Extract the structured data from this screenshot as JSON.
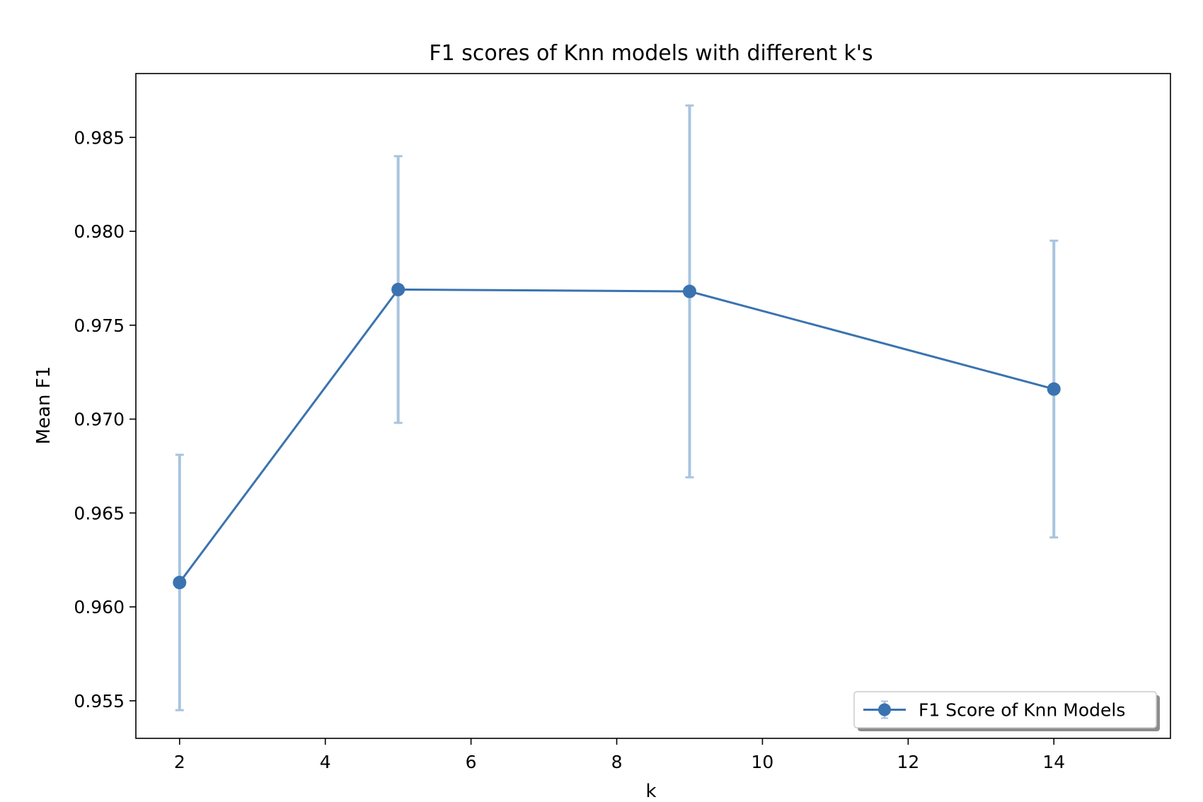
{
  "chart_data": {
    "type": "line",
    "title": "F1 scores of Knn models with different k's",
    "xlabel": "k",
    "ylabel": "Mean F1",
    "xlim": [
      1.4,
      15.6
    ],
    "ylim": [
      0.953,
      0.9884
    ],
    "x_ticks": [
      2,
      4,
      6,
      8,
      10,
      12,
      14
    ],
    "y_ticks": [
      0.955,
      0.96,
      0.965,
      0.97,
      0.975,
      0.98,
      0.985
    ],
    "y_tick_labels": [
      "0.955",
      "0.960",
      "0.965",
      "0.970",
      "0.975",
      "0.980",
      "0.985"
    ],
    "grid": false,
    "legend_position": "lower-right",
    "series": [
      {
        "name": "F1 Score of Knn Models",
        "color": "#3a73b0",
        "errorbar_color": "#a8c4df",
        "marker": "circle",
        "x": [
          2,
          5,
          9,
          14
        ],
        "y": [
          0.9613,
          0.9769,
          0.9768,
          0.9716
        ],
        "yerr": [
          0.0068,
          0.0071,
          0.0099,
          0.0079
        ]
      }
    ]
  }
}
